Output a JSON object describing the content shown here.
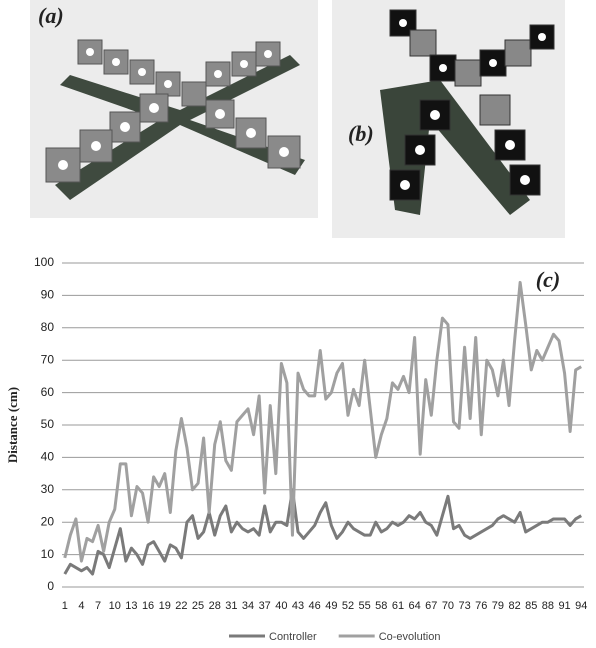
{
  "panels": [
    "(a)",
    "(b)"
  ],
  "chart_data": {
    "type": "line",
    "annotation": "(c)",
    "y_label": "Distance (cm)",
    "categories": [
      1,
      null,
      null,
      4,
      null,
      null,
      7,
      null,
      null,
      10,
      null,
      null,
      13,
      null,
      null,
      16,
      null,
      null,
      19,
      null,
      null,
      22,
      null,
      null,
      25,
      null,
      null,
      28,
      null,
      null,
      31,
      null,
      null,
      34,
      null,
      null,
      37,
      null,
      null,
      40,
      null,
      null,
      43,
      null,
      null,
      46,
      null,
      null,
      49,
      null,
      null,
      52,
      null,
      null,
      55,
      null,
      null,
      58,
      null,
      null,
      61,
      null,
      null,
      64,
      null,
      null,
      67,
      null,
      null,
      70,
      null,
      null,
      73,
      null,
      null,
      76,
      null,
      null,
      79,
      null,
      null,
      82,
      null,
      null,
      85,
      null,
      null,
      88,
      null,
      null,
      91,
      null,
      null,
      94
    ],
    "series": [
      {
        "name": "Controller",
        "color": "#7a7a7a",
        "values": [
          4,
          7,
          6,
          5,
          6,
          4,
          11,
          10,
          6,
          12,
          18,
          8,
          12,
          10,
          7,
          13,
          14,
          11,
          8,
          13,
          12,
          9,
          20,
          22,
          15,
          17,
          23,
          16,
          22,
          25,
          17,
          20,
          18,
          17,
          18,
          16,
          25,
          17,
          20,
          20,
          19,
          30,
          17,
          15,
          17,
          19,
          23,
          26,
          19,
          15,
          17,
          20,
          18,
          17,
          16,
          16,
          20,
          17,
          18,
          20,
          19,
          20,
          22,
          21,
          23,
          20,
          19,
          16,
          22,
          28,
          18,
          19,
          16,
          15,
          16,
          17,
          18,
          19,
          21,
          22,
          21,
          20,
          23,
          17,
          18,
          19,
          20,
          20,
          21,
          21,
          21,
          19,
          21,
          22
        ]
      },
      {
        "name": "Co-evolution",
        "color": "#a0a0a0",
        "values": [
          9,
          16,
          21,
          8,
          15,
          14,
          19,
          11,
          20,
          24,
          38,
          38,
          22,
          31,
          29,
          20,
          34,
          31,
          35,
          23,
          42,
          52,
          43,
          30,
          32,
          46,
          23,
          44,
          51,
          39,
          36,
          51,
          53,
          55,
          47,
          59,
          29,
          56,
          35,
          69,
          63,
          16,
          66,
          61,
          59,
          59,
          73,
          58,
          60,
          66,
          69,
          53,
          61,
          56,
          70,
          55,
          40,
          47,
          52,
          63,
          61,
          65,
          60,
          77,
          41,
          64,
          53,
          70,
          83,
          81,
          51,
          49,
          74,
          52,
          77,
          47,
          70,
          67,
          59,
          70,
          56,
          76,
          94,
          81,
          67,
          73,
          70,
          74,
          78,
          76,
          66,
          48,
          67,
          68
        ]
      }
    ],
    "ylim": [
      0,
      100
    ],
    "yticks": [
      0,
      10,
      20,
      30,
      40,
      50,
      60,
      70,
      80,
      90,
      100
    ],
    "grid": true
  }
}
